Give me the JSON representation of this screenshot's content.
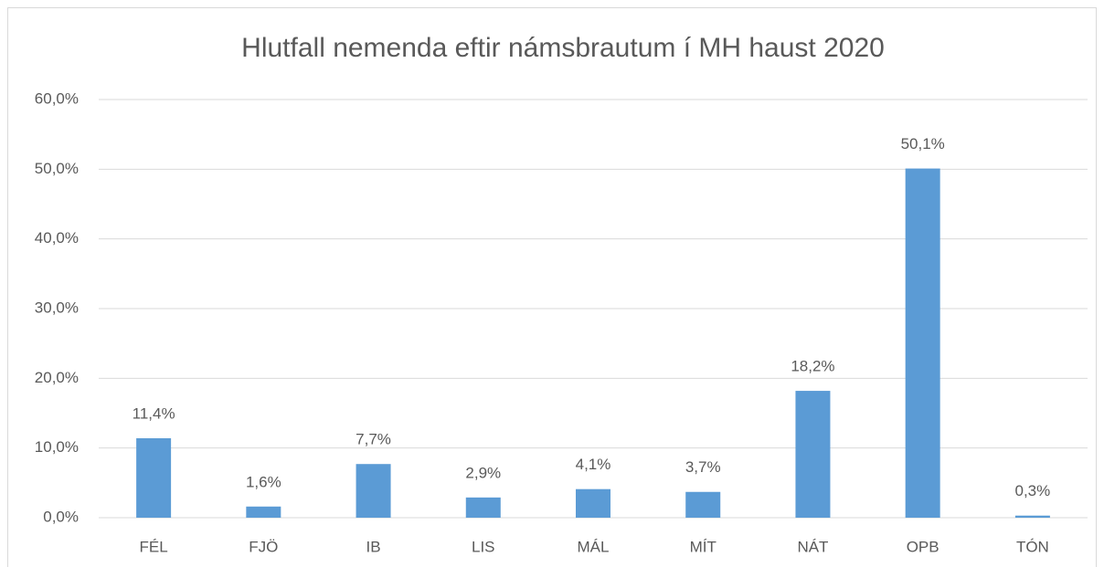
{
  "chart_data": {
    "type": "bar",
    "title": "Hlutfall nemenda eftir námsbrautum í MH haust 2020",
    "categories": [
      "FÉL",
      "FJÖ",
      "IB",
      "LIS",
      "MÁL",
      "MÍT",
      "NÁT",
      "OPB",
      "TÓN"
    ],
    "values": [
      11.4,
      1.6,
      7.7,
      2.9,
      4.1,
      3.7,
      18.2,
      50.1,
      0.3
    ],
    "value_labels": [
      "11,4%",
      "1,6%",
      "7,7%",
      "2,9%",
      "4,1%",
      "3,7%",
      "18,2%",
      "50,1%",
      "0,3%"
    ],
    "color": "#5b9bd5",
    "ylim": [
      0,
      60
    ],
    "yticks": [
      {
        "value": 0,
        "label": "0,0%"
      },
      {
        "value": 10,
        "label": "10,0%"
      },
      {
        "value": 20,
        "label": "20,0%"
      },
      {
        "value": 30,
        "label": "30,0%"
      },
      {
        "value": 40,
        "label": "40,0%"
      },
      {
        "value": 50,
        "label": "50,0%"
      },
      {
        "value": 60,
        "label": "60,0%"
      }
    ],
    "grid": true
  }
}
